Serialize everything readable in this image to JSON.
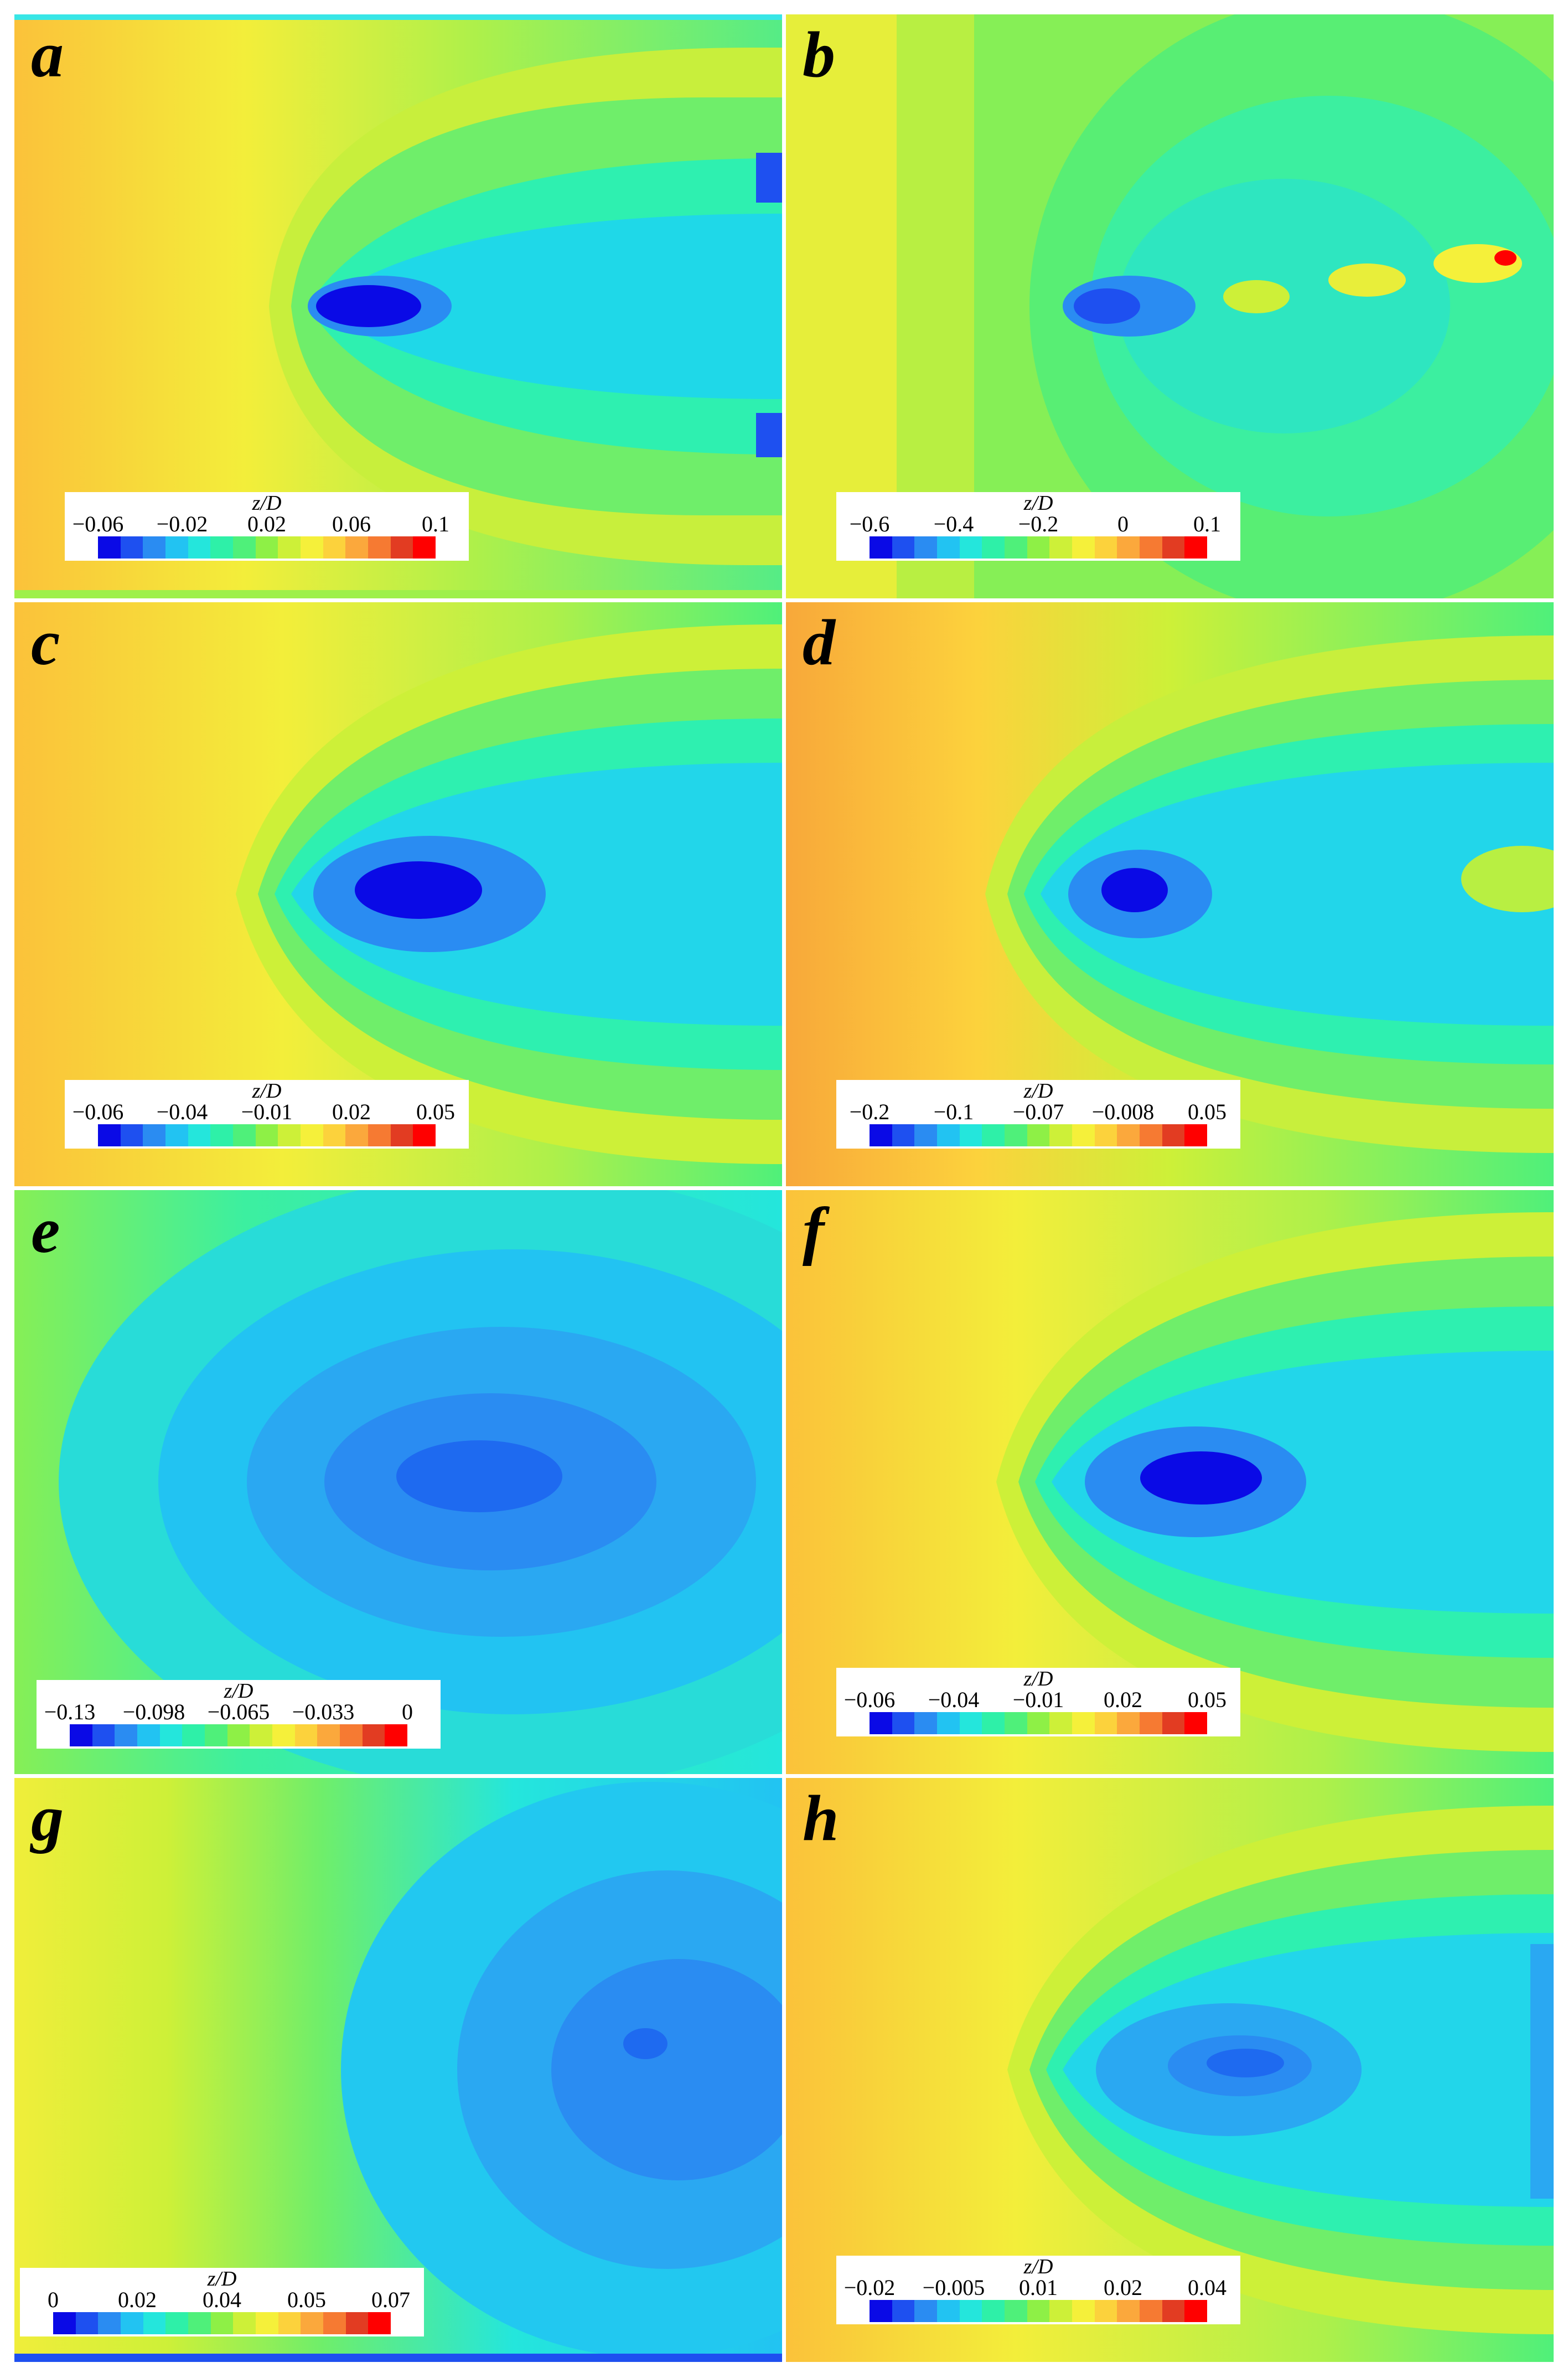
{
  "panels": [
    {
      "letter": "a",
      "legend": {
        "title": "z/D",
        "ticks": [
          "−0.06",
          "−0.02",
          "0.02",
          "0.06",
          "0.1"
        ]
      }
    },
    {
      "letter": "b",
      "legend": {
        "title": "z/D",
        "ticks": [
          "−0.6",
          "−0.4",
          "−0.2",
          "0",
          "0.1"
        ]
      }
    },
    {
      "letter": "c",
      "legend": {
        "title": "z/D",
        "ticks": [
          "−0.06",
          "−0.04",
          "−0.01",
          "0.02",
          "0.05"
        ]
      }
    },
    {
      "letter": "d",
      "legend": {
        "title": "z/D",
        "ticks": [
          "−0.2",
          "−0.1",
          "−0.07",
          "−0.008",
          "0.05"
        ]
      }
    },
    {
      "letter": "e",
      "legend": {
        "title": "z/D",
        "ticks": [
          "−0.13",
          "−0.098",
          "−0.065",
          "−0.033",
          "0"
        ]
      }
    },
    {
      "letter": "f",
      "legend": {
        "title": "z/D",
        "ticks": [
          "−0.06",
          "−0.04",
          "−0.01",
          "0.02",
          "0.05"
        ]
      }
    },
    {
      "letter": "g",
      "legend": {
        "title": "z/D",
        "ticks": [
          "0",
          "0.02",
          "0.04",
          "0.05",
          "0.07"
        ]
      }
    },
    {
      "letter": "h",
      "legend": {
        "title": "z/D",
        "ticks": [
          "−0.02",
          "−0.005",
          "0.01",
          "0.02",
          "0.04"
        ]
      }
    }
  ],
  "colormap": [
    "#0a0ae6",
    "#1e50f0",
    "#2a8cf2",
    "#22c3f2",
    "#24e6dc",
    "#2ef0a8",
    "#4ff07a",
    "#8ef046",
    "#cdf038",
    "#f5f03a",
    "#fcd23c",
    "#fba83c",
    "#f67a32",
    "#e23c22",
    "#ff0000"
  ]
}
